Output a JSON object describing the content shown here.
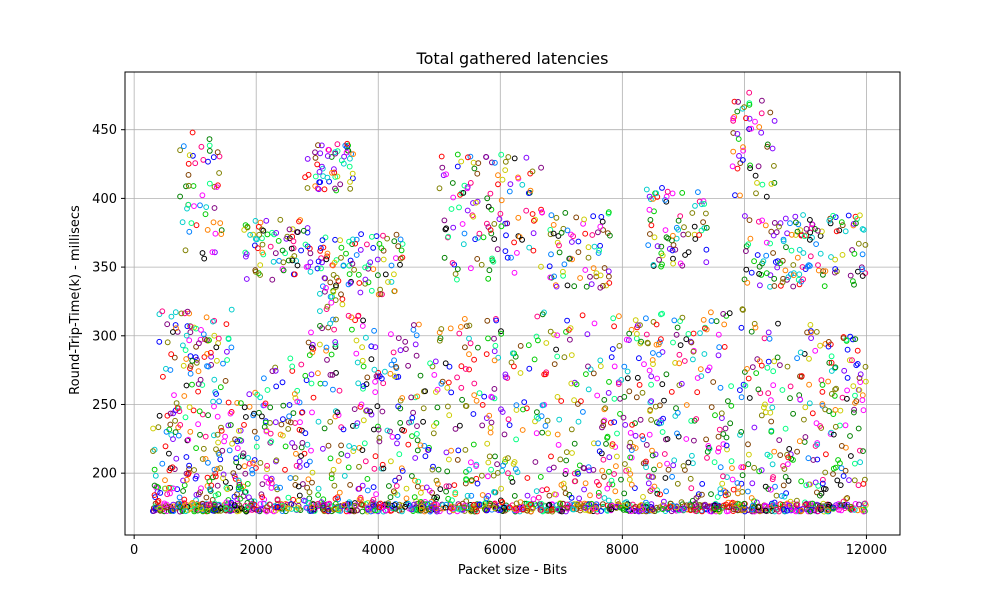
{
  "chart_data": {
    "type": "scatter",
    "title": "Total gathered latencies",
    "xlabel": "Packet size - Bits",
    "ylabel": "Round-Trip-Time(k) - millisecs",
    "xlim": [
      -150,
      12550
    ],
    "ylim": [
      155,
      492
    ],
    "x_ticks": [
      0,
      2000,
      4000,
      6000,
      8000,
      10000,
      12000
    ],
    "y_ticks": [
      200,
      250,
      300,
      350,
      400,
      450
    ],
    "grid": true,
    "legend": "none",
    "marker": "hollow-circle",
    "x_range_of_points": [
      300,
      12000
    ],
    "baseline_rtt": 172,
    "dense_band": [
      {
        "x": 300,
        "y_max": 250
      },
      {
        "x": 1800,
        "y_max": 255
      },
      {
        "x": 2600,
        "y_max": 290
      },
      {
        "x": 3200,
        "y_max": 335
      },
      {
        "x": 4000,
        "y_max": 305
      },
      {
        "x": 5000,
        "y_max": 310
      },
      {
        "x": 6000,
        "y_max": 320
      },
      {
        "x": 8000,
        "y_max": 315
      },
      {
        "x": 10000,
        "y_max": 320
      },
      {
        "x": 12000,
        "y_max": 300
      }
    ],
    "outlier_clusters": [
      {
        "x_range": [
          750,
          1450
        ],
        "y_range": [
          355,
          448
        ]
      },
      {
        "x_range": [
          400,
          1600
        ],
        "y_range": [
          255,
          320
        ]
      },
      {
        "x_range": [
          1800,
          2900
        ],
        "y_range": [
          340,
          385
        ]
      },
      {
        "x_range": [
          2800,
          3600
        ],
        "y_range": [
          405,
          440
        ]
      },
      {
        "x_range": [
          3000,
          4400
        ],
        "y_range": [
          330,
          375
        ]
      },
      {
        "x_range": [
          5000,
          6700
        ],
        "y_range": [
          340,
          432
        ]
      },
      {
        "x_range": [
          6800,
          7800
        ],
        "y_range": [
          335,
          390
        ]
      },
      {
        "x_range": [
          8400,
          9400
        ],
        "y_range": [
          350,
          408
        ]
      },
      {
        "x_range": [
          9800,
          10500
        ],
        "y_range": [
          400,
          478
        ]
      },
      {
        "x_range": [
          10000,
          12000
        ],
        "y_range": [
          335,
          388
        ]
      }
    ],
    "palette": [
      "#ff0000",
      "#00cc00",
      "#0000ff",
      "#ff00ff",
      "#00cccc",
      "#cccc00",
      "#800080",
      "#008000",
      "#000000",
      "#ff8000",
      "#8000ff",
      "#00ff80",
      "#ff0080",
      "#808000",
      "#0080ff",
      "#804000"
    ]
  }
}
